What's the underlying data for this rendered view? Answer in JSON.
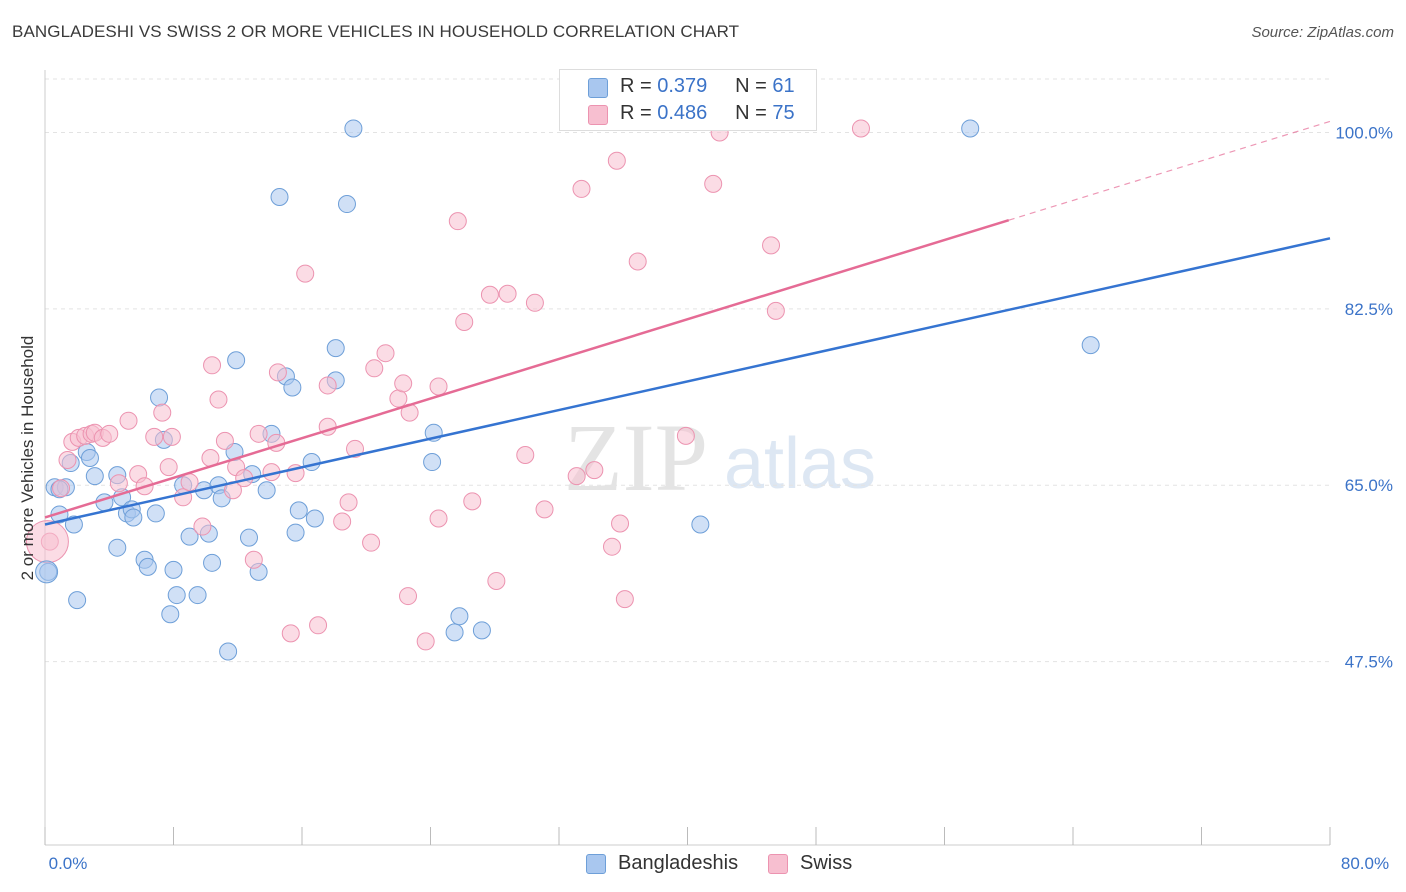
{
  "title": "BANGLADESHI VS SWISS 2 OR MORE VEHICLES IN HOUSEHOLD CORRELATION CHART",
  "source": "Source: ZipAtlas.com",
  "watermark": {
    "zip": "ZIP",
    "atlas": "atlas"
  },
  "legend_top": {
    "rows": [
      {
        "r_label": "R =",
        "r_value": "0.379",
        "n_label": "N =",
        "n_value": "61"
      },
      {
        "r_label": "R =",
        "r_value": "0.486",
        "n_label": "N =",
        "n_value": "75"
      }
    ]
  },
  "legend_bottom": {
    "items": [
      "Bangladeshis",
      "Swiss"
    ]
  },
  "chart_data": {
    "type": "scatter",
    "title": "BANGLADESHI VS SWISS 2 OR MORE VEHICLES IN HOUSEHOLD CORRELATION CHART",
    "xlabel": "",
    "ylabel": "2 or more Vehicles in Household",
    "xlim": [
      0,
      80
    ],
    "ylim": [
      29.3,
      106.2
    ],
    "x_tick_labels": [
      "0.0%",
      "80.0%"
    ],
    "y_ticks": [
      47.5,
      65.0,
      82.5,
      100.0
    ],
    "y_tick_labels": [
      "47.5%",
      "65.0%",
      "82.5%",
      "100.0%"
    ],
    "grid": true,
    "legend": "top-center",
    "series": [
      {
        "name": "Bangladeshis",
        "color": "#a9c7ef",
        "stroke": "#6e9fd8",
        "line_color": "#3574d1",
        "r": "0.379",
        "n": "61",
        "trend": {
          "x0": 0,
          "y0": 61.1,
          "x1": 80,
          "y1": 89.5
        },
        "points": [
          [
            0.2,
            56.4
          ],
          [
            0.6,
            64.8
          ],
          [
            0.9,
            62.1
          ],
          [
            1.3,
            64.8
          ],
          [
            1.6,
            67.2
          ],
          [
            1.8,
            61.1
          ],
          [
            2.0,
            53.6
          ],
          [
            2.6,
            68.3
          ],
          [
            2.8,
            67.7
          ],
          [
            3.1,
            65.9
          ],
          [
            3.7,
            63.3
          ],
          [
            4.5,
            66.0
          ],
          [
            4.8,
            63.8
          ],
          [
            4.5,
            58.8
          ],
          [
            5.1,
            62.2
          ],
          [
            5.4,
            62.6
          ],
          [
            5.5,
            61.8
          ],
          [
            6.2,
            57.6
          ],
          [
            6.4,
            56.9
          ],
          [
            6.9,
            62.2
          ],
          [
            7.1,
            73.7
          ],
          [
            7.4,
            69.5
          ],
          [
            7.8,
            52.2
          ],
          [
            8.0,
            56.6
          ],
          [
            8.2,
            54.1
          ],
          [
            8.6,
            65.0
          ],
          [
            9.0,
            59.9
          ],
          [
            9.5,
            54.1
          ],
          [
            9.9,
            64.5
          ],
          [
            10.2,
            60.2
          ],
          [
            10.4,
            57.3
          ],
          [
            10.8,
            65.0
          ],
          [
            11.0,
            63.7
          ],
          [
            11.4,
            48.5
          ],
          [
            11.8,
            68.3
          ],
          [
            11.9,
            77.4
          ],
          [
            12.7,
            59.8
          ],
          [
            12.9,
            66.1
          ],
          [
            13.3,
            56.4
          ],
          [
            13.8,
            64.5
          ],
          [
            14.1,
            70.1
          ],
          [
            14.6,
            93.6
          ],
          [
            15.0,
            75.8
          ],
          [
            15.4,
            74.7
          ],
          [
            15.6,
            60.3
          ],
          [
            15.8,
            62.5
          ],
          [
            16.6,
            67.3
          ],
          [
            16.8,
            61.7
          ],
          [
            18.1,
            75.4
          ],
          [
            18.1,
            78.6
          ],
          [
            18.8,
            92.9
          ],
          [
            19.2,
            100.4
          ],
          [
            24.1,
            67.3
          ],
          [
            24.2,
            70.2
          ],
          [
            25.5,
            50.4
          ],
          [
            25.8,
            52.0
          ],
          [
            27.2,
            50.6
          ],
          [
            40.8,
            61.1
          ],
          [
            57.6,
            100.4
          ],
          [
            65.1,
            78.9
          ],
          [
            0.9,
            64.6
          ]
        ]
      },
      {
        "name": "Swiss",
        "color": "#f7bfd0",
        "stroke": "#ec93b0",
        "line_color": "#e56b95",
        "r": "0.486",
        "n": "75",
        "trend": {
          "x0": 0,
          "y0": 61.8,
          "x1": 60,
          "y1": 91.3
        },
        "trend_dashed": {
          "x0": 60,
          "y0": 91.3,
          "x1": 80,
          "y1": 101.1
        },
        "points": [
          [
            0.3,
            59.4
          ],
          [
            1.0,
            64.7
          ],
          [
            1.4,
            67.5
          ],
          [
            1.7,
            69.3
          ],
          [
            2.1,
            69.7
          ],
          [
            2.5,
            69.9
          ],
          [
            2.9,
            70.1
          ],
          [
            3.1,
            70.2
          ],
          [
            3.6,
            69.7
          ],
          [
            4.0,
            70.1
          ],
          [
            4.6,
            65.2
          ],
          [
            5.2,
            71.4
          ],
          [
            5.8,
            66.1
          ],
          [
            6.2,
            64.9
          ],
          [
            6.8,
            69.8
          ],
          [
            7.3,
            72.2
          ],
          [
            7.7,
            66.8
          ],
          [
            7.9,
            69.8
          ],
          [
            8.6,
            63.8
          ],
          [
            9.0,
            65.3
          ],
          [
            9.8,
            60.9
          ],
          [
            10.3,
            67.7
          ],
          [
            10.4,
            76.9
          ],
          [
            10.8,
            73.5
          ],
          [
            11.2,
            69.4
          ],
          [
            11.7,
            64.5
          ],
          [
            11.9,
            66.8
          ],
          [
            12.4,
            65.7
          ],
          [
            13.0,
            57.6
          ],
          [
            13.3,
            70.1
          ],
          [
            14.1,
            66.3
          ],
          [
            14.4,
            69.2
          ],
          [
            14.5,
            76.2
          ],
          [
            15.3,
            50.3
          ],
          [
            15.6,
            66.2
          ],
          [
            16.2,
            86.0
          ],
          [
            17.0,
            51.1
          ],
          [
            17.6,
            74.9
          ],
          [
            17.6,
            70.8
          ],
          [
            18.5,
            61.4
          ],
          [
            18.9,
            63.3
          ],
          [
            19.3,
            68.6
          ],
          [
            20.3,
            59.3
          ],
          [
            20.5,
            76.6
          ],
          [
            21.2,
            78.1
          ],
          [
            22.0,
            73.6
          ],
          [
            22.3,
            75.1
          ],
          [
            22.6,
            54.0
          ],
          [
            22.7,
            72.2
          ],
          [
            23.7,
            49.5
          ],
          [
            24.5,
            61.7
          ],
          [
            24.5,
            74.8
          ],
          [
            25.7,
            91.2
          ],
          [
            26.1,
            81.2
          ],
          [
            26.6,
            63.4
          ],
          [
            27.7,
            83.9
          ],
          [
            28.1,
            55.5
          ],
          [
            28.8,
            84.0
          ],
          [
            29.9,
            68.0
          ],
          [
            30.5,
            83.1
          ],
          [
            31.1,
            62.6
          ],
          [
            33.1,
            65.9
          ],
          [
            33.4,
            94.4
          ],
          [
            34.2,
            66.5
          ],
          [
            35.3,
            58.9
          ],
          [
            35.6,
            97.2
          ],
          [
            35.8,
            61.2
          ],
          [
            36.1,
            53.7
          ],
          [
            36.9,
            87.2
          ],
          [
            39.9,
            69.9
          ],
          [
            41.6,
            94.9
          ],
          [
            42.0,
            100.0
          ],
          [
            45.2,
            88.8
          ],
          [
            45.5,
            82.3
          ],
          [
            50.8,
            100.4
          ]
        ]
      }
    ]
  }
}
